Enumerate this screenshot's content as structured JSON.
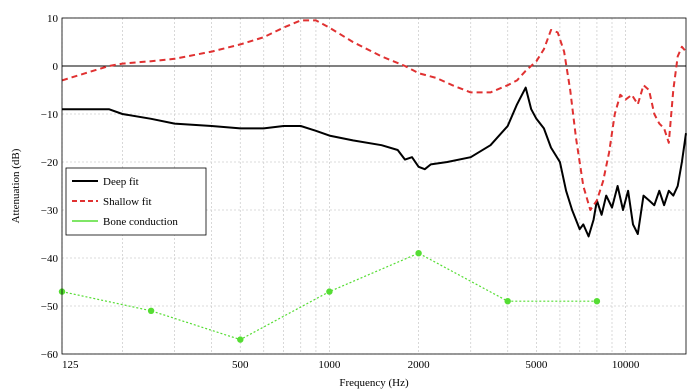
{
  "chart_data": {
    "type": "line",
    "xlabel": "Frequency (Hz)",
    "ylabel": "Attenuation (dB)",
    "x_scale": "log",
    "xlim": [
      125,
      16000
    ],
    "ylim": [
      -60,
      10
    ],
    "x_ticks": [
      125,
      500,
      1000,
      2000,
      5000,
      10000
    ],
    "x_tick_labels": [
      "125",
      "500",
      "1000",
      "2000",
      "5000",
      "10000"
    ],
    "y_ticks": [
      10,
      0,
      -10,
      -20,
      -30,
      -40,
      -50,
      -60
    ],
    "y_tick_labels": [
      "10",
      "0",
      "−10",
      "−20",
      "−30",
      "−40",
      "−50",
      "−60"
    ],
    "x_minor_ticks": [
      200,
      300,
      400,
      600,
      700,
      800,
      900,
      3000,
      4000,
      6000,
      7000,
      8000,
      9000
    ],
    "grid": true,
    "zero_line": true,
    "legend_position": "middle-left",
    "legend": [
      "Deep fit",
      "Shallow fit",
      "Bone conduction"
    ],
    "series": [
      {
        "name": "Deep fit",
        "color": "#000000",
        "style": "solid",
        "x": [
          125,
          180,
          200,
          250,
          300,
          400,
          500,
          600,
          700,
          800,
          900,
          1000,
          1200,
          1500,
          1700,
          1800,
          1900,
          2000,
          2100,
          2200,
          2500,
          3000,
          3500,
          4000,
          4300,
          4600,
          4800,
          5000,
          5300,
          5600,
          6000,
          6300,
          6600,
          7000,
          7200,
          7500,
          7800,
          8000,
          8300,
          8600,
          9000,
          9400,
          9800,
          10200,
          10600,
          11000,
          11500,
          12000,
          12500,
          13000,
          13500,
          14000,
          14500,
          15000,
          15500,
          16000
        ],
        "y": [
          -9,
          -9,
          -10,
          -11,
          -12,
          -12.5,
          -13,
          -13,
          -12.5,
          -12.5,
          -13.5,
          -14.5,
          -15.5,
          -16.5,
          -17.5,
          -19.5,
          -19,
          -21,
          -21.5,
          -20.5,
          -20,
          -19,
          -16.5,
          -12.5,
          -8,
          -4.5,
          -9,
          -11,
          -13,
          -17,
          -20,
          -26,
          -30,
          -34,
          -33,
          -35.5,
          -32,
          -28,
          -31,
          -27,
          -29.5,
          -25,
          -30,
          -26,
          -33,
          -35,
          -27,
          -28,
          -29,
          -26,
          -29,
          -26,
          -27,
          -25,
          -20,
          -14
        ]
      },
      {
        "name": "Shallow fit",
        "color": "#e03131",
        "style": "dashed",
        "x": [
          125,
          150,
          180,
          200,
          250,
          300,
          400,
          500,
          600,
          700,
          800,
          900,
          1000,
          1200,
          1500,
          1800,
          2000,
          2300,
          2600,
          3000,
          3500,
          4000,
          4300,
          4600,
          5000,
          5300,
          5600,
          5900,
          6200,
          6500,
          6800,
          7200,
          7600,
          8000,
          8400,
          8800,
          9200,
          9600,
          10000,
          10500,
          11000,
          11500,
          12000,
          12500,
          13000,
          13500,
          14000,
          14500,
          15000,
          15500,
          16000
        ],
        "y": [
          -3,
          -1.5,
          0,
          0.5,
          1,
          1.5,
          3,
          4.5,
          6,
          8,
          9.5,
          9.5,
          8,
          5,
          2,
          0,
          -1.5,
          -2.5,
          -4,
          -5.5,
          -5.5,
          -4,
          -3,
          -1,
          1,
          3.5,
          7.5,
          7,
          3,
          -5,
          -15,
          -25,
          -30,
          -28,
          -24,
          -18,
          -10,
          -6,
          -7,
          -6,
          -8,
          -4,
          -5,
          -10,
          -12,
          -13,
          -16,
          -5,
          2,
          4,
          3
        ]
      },
      {
        "name": "Bone conduction",
        "color": "#55dd33",
        "style": "dotted",
        "markers": true,
        "x": [
          125,
          250,
          500,
          1000,
          2000,
          4000,
          8000
        ],
        "y": [
          -47,
          -51,
          -57,
          -47,
          -39,
          -49,
          -49
        ]
      }
    ]
  }
}
